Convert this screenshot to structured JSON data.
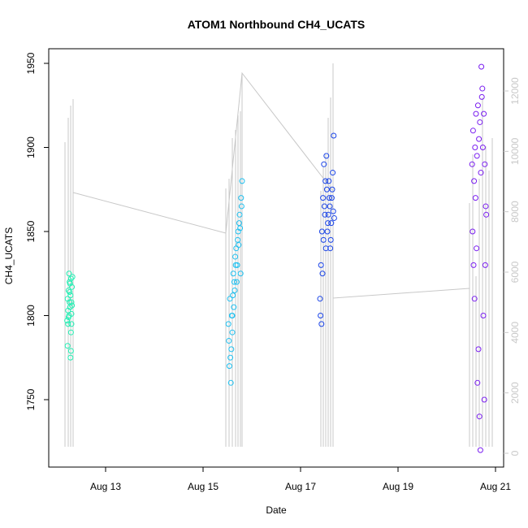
{
  "chart_data": {
    "type": "scatter",
    "title": "ATOM1 Northbound CH4_UCATS",
    "xlabel": "Date",
    "ylabel": "CH4_UCATS",
    "x_ticks": [
      "Aug 13",
      "Aug 15",
      "Aug 17",
      "Aug 19",
      "Aug 21"
    ],
    "x_tick_values": [
      13,
      15,
      17,
      19,
      21
    ],
    "xlim": [
      12.05,
      21.05
    ],
    "ylim": [
      1720,
      1955
    ],
    "y_ticks": [
      1750,
      1800,
      1850,
      1900,
      1950
    ],
    "y2lim": [
      -200,
      13000
    ],
    "y2_ticks": [
      0,
      2000,
      4000,
      6000,
      8000,
      10000,
      12000
    ],
    "grid": false,
    "legend": "none",
    "colors": {
      "background_trace": "#c8c8c8",
      "series_1": "#22f0b4",
      "series_2": "#1ec0f0",
      "series_3": "#1a44e8",
      "series_4": "#7a1ef0"
    },
    "series": [
      {
        "x_range": [
          12.2,
          12.32
        ],
        "points": [
          [
            12.22,
            1810
          ],
          [
            12.23,
            1795
          ],
          [
            12.24,
            1815
          ],
          [
            12.25,
            1800
          ],
          [
            12.26,
            1820
          ],
          [
            12.27,
            1805
          ],
          [
            12.28,
            1812
          ],
          [
            12.29,
            1790
          ],
          [
            12.3,
            1808
          ],
          [
            12.31,
            1817
          ],
          [
            12.22,
            1782
          ],
          [
            12.25,
            1825
          ],
          [
            12.28,
            1775
          ],
          [
            12.3,
            1795
          ],
          [
            12.23,
            1803
          ],
          [
            12.26,
            1814
          ],
          [
            12.29,
            1822
          ],
          [
            12.31,
            1806
          ],
          [
            12.24,
            1799
          ],
          [
            12.27,
            1819
          ],
          [
            12.3,
            1801
          ],
          [
            12.21,
            1797
          ],
          [
            12.26,
            1808
          ],
          [
            12.29,
            1779
          ],
          [
            12.32,
            1823
          ]
        ]
      },
      {
        "x_range": [
          15.5,
          15.82
        ],
        "points": [
          [
            15.52,
            1795
          ],
          [
            15.55,
            1810
          ],
          [
            15.58,
            1780
          ],
          [
            15.6,
            1800
          ],
          [
            15.62,
            1825
          ],
          [
            15.65,
            1815
          ],
          [
            15.68,
            1840
          ],
          [
            15.7,
            1830
          ],
          [
            15.72,
            1850
          ],
          [
            15.75,
            1860
          ],
          [
            15.78,
            1870
          ],
          [
            15.8,
            1880
          ],
          [
            15.54,
            1770
          ],
          [
            15.57,
            1760
          ],
          [
            15.6,
            1790
          ],
          [
            15.63,
            1805
          ],
          [
            15.66,
            1835
          ],
          [
            15.69,
            1820
          ],
          [
            15.71,
            1845
          ],
          [
            15.74,
            1855
          ],
          [
            15.77,
            1825
          ],
          [
            15.79,
            1865
          ],
          [
            15.53,
            1785
          ],
          [
            15.56,
            1775
          ],
          [
            15.59,
            1800
          ],
          [
            15.61,
            1812
          ],
          [
            15.64,
            1820
          ],
          [
            15.67,
            1830
          ],
          [
            15.73,
            1842
          ],
          [
            15.76,
            1852
          ]
        ]
      },
      {
        "x_range": [
          17.38,
          17.7
        ],
        "points": [
          [
            17.4,
            1810
          ],
          [
            17.42,
            1830
          ],
          [
            17.44,
            1850
          ],
          [
            17.46,
            1870
          ],
          [
            17.48,
            1890
          ],
          [
            17.5,
            1860
          ],
          [
            17.52,
            1840
          ],
          [
            17.54,
            1875
          ],
          [
            17.56,
            1855
          ],
          [
            17.58,
            1880
          ],
          [
            17.6,
            1865
          ],
          [
            17.62,
            1845
          ],
          [
            17.64,
            1870
          ],
          [
            17.66,
            1885
          ],
          [
            17.68,
            1907
          ],
          [
            17.41,
            1800
          ],
          [
            17.43,
            1795
          ],
          [
            17.45,
            1825
          ],
          [
            17.47,
            1845
          ],
          [
            17.49,
            1865
          ],
          [
            17.51,
            1880
          ],
          [
            17.53,
            1895
          ],
          [
            17.55,
            1850
          ],
          [
            17.57,
            1860
          ],
          [
            17.59,
            1870
          ],
          [
            17.61,
            1840
          ],
          [
            17.63,
            1855
          ],
          [
            17.65,
            1875
          ],
          [
            17.67,
            1862
          ],
          [
            17.69,
            1858
          ]
        ]
      },
      {
        "x_range": [
          20.5,
          20.82
        ],
        "points": [
          [
            20.52,
            1890
          ],
          [
            20.54,
            1910
          ],
          [
            20.56,
            1880
          ],
          [
            20.58,
            1900
          ],
          [
            20.6,
            1920
          ],
          [
            20.62,
            1895
          ],
          [
            20.64,
            1925
          ],
          [
            20.66,
            1905
          ],
          [
            20.68,
            1915
          ],
          [
            20.7,
            1885
          ],
          [
            20.72,
            1930
          ],
          [
            20.74,
            1900
          ],
          [
            20.76,
            1920
          ],
          [
            20.78,
            1890
          ],
          [
            20.8,
            1865
          ],
          [
            20.53,
            1850
          ],
          [
            20.55,
            1830
          ],
          [
            20.57,
            1810
          ],
          [
            20.59,
            1870
          ],
          [
            20.61,
            1840
          ],
          [
            20.63,
            1760
          ],
          [
            20.65,
            1780
          ],
          [
            20.67,
            1740
          ],
          [
            20.69,
            1720
          ],
          [
            20.71,
            1948
          ],
          [
            20.73,
            1935
          ],
          [
            20.75,
            1800
          ],
          [
            20.77,
            1750
          ],
          [
            20.79,
            1830
          ],
          [
            20.81,
            1860
          ]
        ]
      }
    ]
  }
}
